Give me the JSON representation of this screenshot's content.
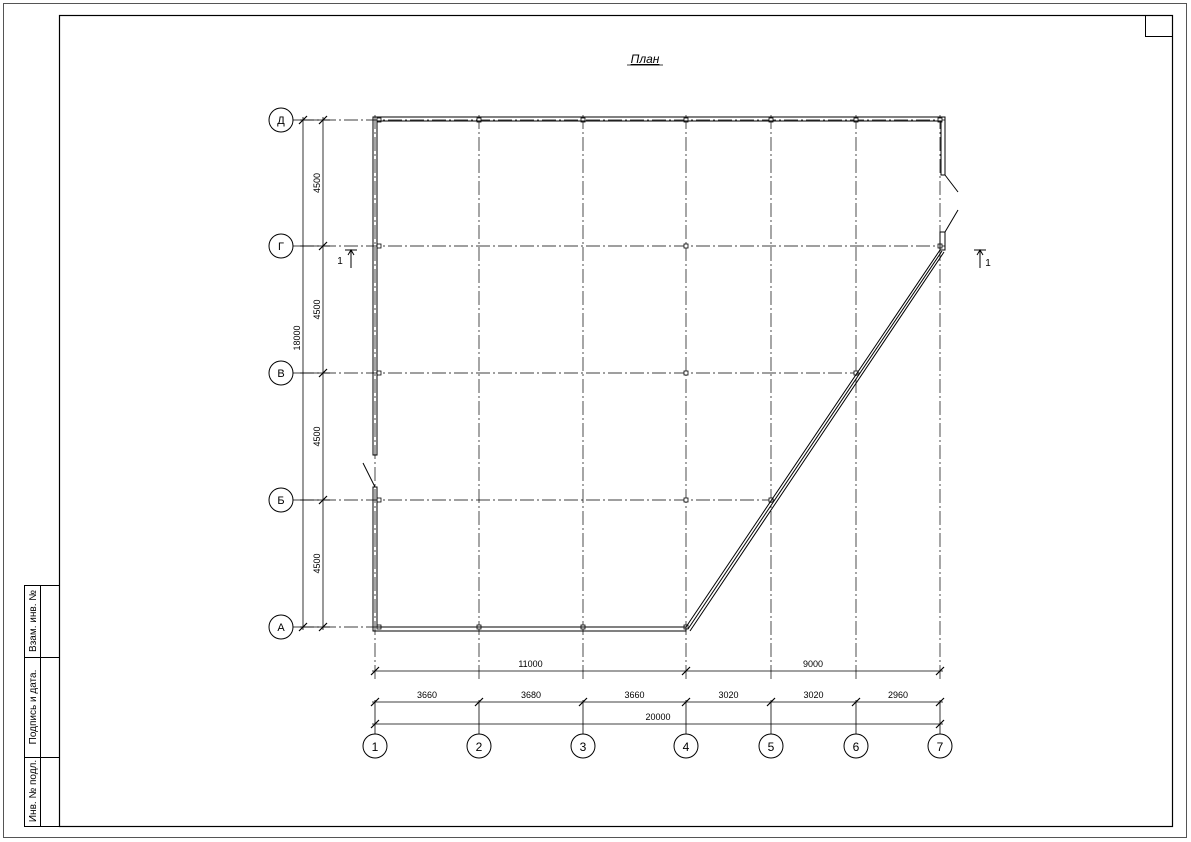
{
  "title": "План",
  "stamp": {
    "cells": [
      "Взам. инв. №",
      "Подпись  и  дата.",
      "Инв. № подл."
    ]
  },
  "axes": {
    "columns": [
      "1",
      "2",
      "3",
      "4",
      "5",
      "6",
      "7"
    ],
    "rows": [
      "Д",
      "Г",
      "В",
      "Б",
      "А"
    ]
  },
  "dimensions": {
    "overall_top": [
      "11000",
      "9000"
    ],
    "spans": [
      "3660",
      "3680",
      "3660",
      "3020",
      "3020",
      "2960"
    ],
    "total_horizontal": "20000",
    "row_spans": [
      "4500",
      "4500",
      "4500",
      "4500"
    ],
    "total_vertical": "18000"
  },
  "section_marks": {
    "left": "1",
    "right": "1"
  },
  "colors": {
    "line": "#000000",
    "axis": "#000000",
    "background": "#ffffff"
  }
}
